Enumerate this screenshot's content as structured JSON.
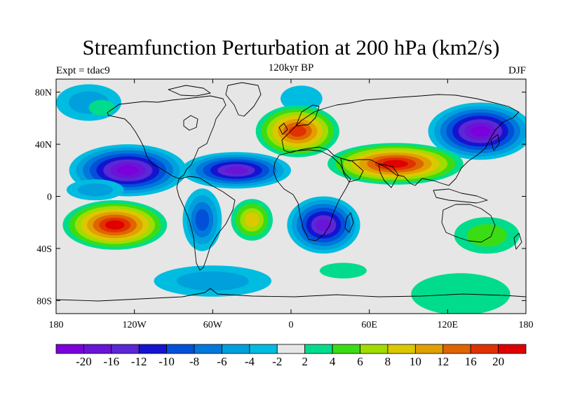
{
  "header": {
    "title": "Streamfunction Perturbation at 200 hPa (km2/s)",
    "subtitle": "120kyr BP",
    "left_label": "Expt = tdac9",
    "right_label": "DJF"
  },
  "map": {
    "projection": "cylindrical-equidistant",
    "lon_range": [
      -180,
      180
    ],
    "lat_range": [
      -90,
      90
    ],
    "background_color": "#e6e6e6",
    "x_ticks": [
      {
        "value": -180,
        "label": "180"
      },
      {
        "value": -120,
        "label": "120W"
      },
      {
        "value": -60,
        "label": "60W"
      },
      {
        "value": 0,
        "label": "0"
      },
      {
        "value": 60,
        "label": "60E"
      },
      {
        "value": 120,
        "label": "120E"
      },
      {
        "value": 180,
        "label": "180"
      }
    ],
    "y_ticks": [
      {
        "value": 80,
        "label": "80N"
      },
      {
        "value": 40,
        "label": "40N"
      },
      {
        "value": 0,
        "label": "0"
      },
      {
        "value": -40,
        "label": "40S"
      },
      {
        "value": -80,
        "label": "80S"
      }
    ],
    "anomalies": [
      {
        "lon": -125,
        "lat": 20,
        "rlon": 45,
        "rlat": 20,
        "level": -20
      },
      {
        "lon": -42,
        "lat": 20,
        "rlon": 42,
        "rlat": 14,
        "level": -18
      },
      {
        "lon": 145,
        "lat": 50,
        "rlon": 40,
        "rlat": 22,
        "level": -20
      },
      {
        "lon": 25,
        "lat": -22,
        "rlon": 28,
        "rlat": 22,
        "level": -18
      },
      {
        "lon": -68,
        "lat": -18,
        "rlon": 15,
        "rlat": 24,
        "level": -9
      },
      {
        "lon": -155,
        "lat": 72,
        "rlon": 25,
        "rlat": 14,
        "level": -5
      },
      {
        "lon": 8,
        "lat": 75,
        "rlon": 16,
        "rlat": 10,
        "level": -3
      },
      {
        "lon": 10,
        "lat": 45,
        "rlon": 22,
        "rlat": 10,
        "level": -4
      },
      {
        "lon": -60,
        "lat": -65,
        "rlon": 45,
        "rlat": 12,
        "level": -4
      },
      {
        "lon": -150,
        "lat": 5,
        "rlon": 22,
        "rlat": 8,
        "level": -5
      },
      {
        "lon": -135,
        "lat": -22,
        "rlon": 40,
        "rlat": 19,
        "level": 20
      },
      {
        "lon": 80,
        "lat": 25,
        "rlon": 52,
        "rlat": 16,
        "level": 20
      },
      {
        "lon": 5,
        "lat": 50,
        "rlon": 32,
        "rlat": 20,
        "level": 16
      },
      {
        "lon": -30,
        "lat": -18,
        "rlon": 16,
        "rlat": 16,
        "level": 8
      },
      {
        "lon": 150,
        "lat": -30,
        "rlon": 25,
        "rlat": 14,
        "level": 5
      },
      {
        "lon": 130,
        "lat": -75,
        "rlon": 38,
        "rlat": 16,
        "level": 3
      },
      {
        "lon": -145,
        "lat": 68,
        "rlon": 10,
        "rlat": 6,
        "level": 3
      },
      {
        "lon": 40,
        "lat": -57,
        "rlon": 18,
        "rlat": 6,
        "level": 3
      }
    ]
  },
  "colorbar": {
    "colors": [
      "#7b00dc",
      "#6a14d8",
      "#5a28d4",
      "#1414d0",
      "#0050d8",
      "#0078dc",
      "#00a0dc",
      "#00bce0",
      "#e6e6e6",
      "#00dc8c",
      "#3cdc14",
      "#a0dc00",
      "#dcc800",
      "#e0a000",
      "#e06400",
      "#e03200",
      "#e00000"
    ],
    "labels": [
      "-20",
      "-16",
      "-12",
      "-10",
      "-8",
      "-6",
      "-4",
      "-2",
      "2",
      "4",
      "6",
      "8",
      "10",
      "12",
      "16",
      "20"
    ],
    "levels": [
      -20,
      -16,
      -12,
      -10,
      -8,
      -6,
      -4,
      -2,
      2,
      4,
      6,
      8,
      10,
      12,
      16,
      20
    ]
  }
}
